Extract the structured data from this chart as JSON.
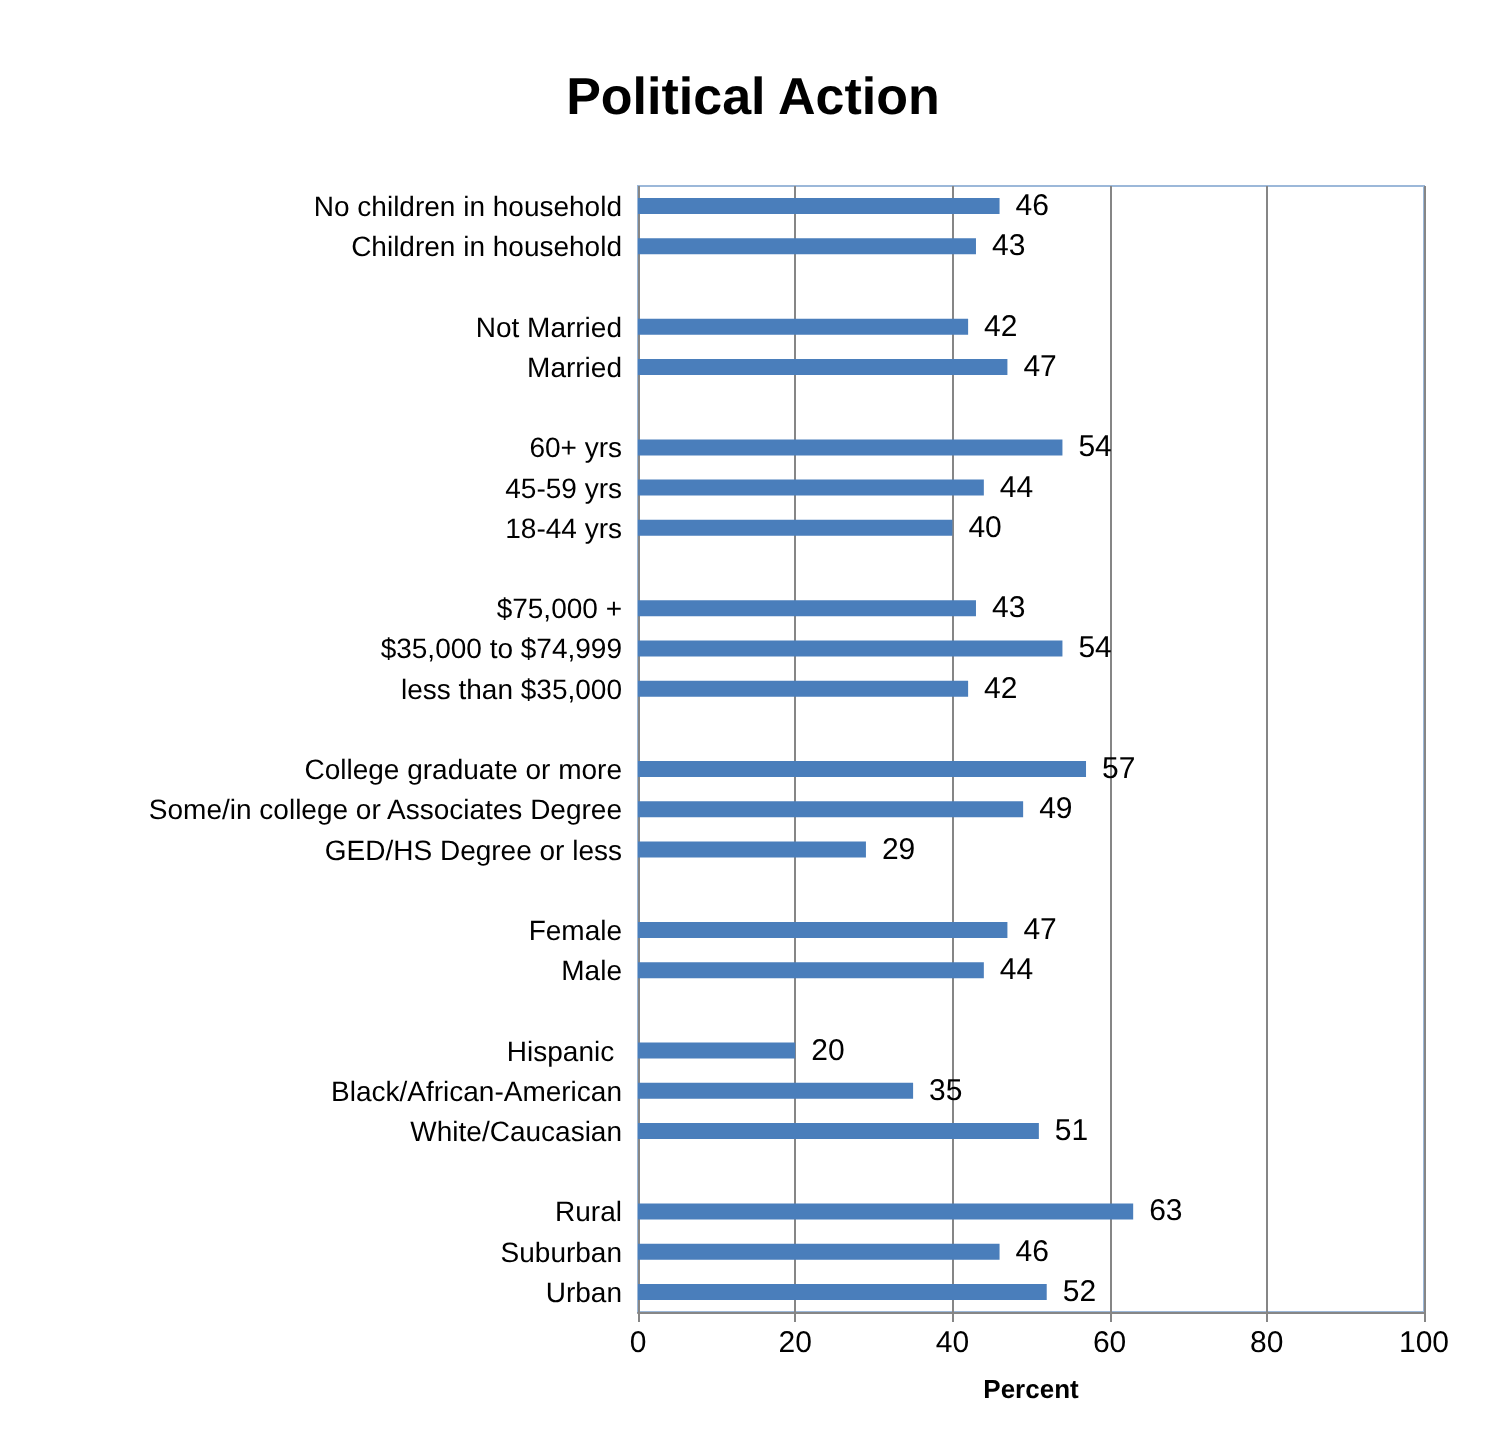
{
  "chart_data": {
    "type": "bar",
    "orientation": "horizontal",
    "title": "Political Action",
    "xlabel": "Percent",
    "categories": [
      "No children in household",
      "Children in household",
      null,
      "Not Married",
      "Married",
      null,
      "60+ yrs",
      "45-59 yrs",
      "18-44 yrs",
      null,
      "$75,000 +",
      "$35,000 to $74,999",
      "less than $35,000",
      null,
      "College graduate or more",
      "Some/in college or Associates Degree",
      "GED/HS Degree or less",
      null,
      "Female",
      "Male",
      null,
      "Hispanic ",
      "Black/African-American",
      "White/Caucasian",
      null,
      "Rural",
      "Suburban",
      "Urban"
    ],
    "values": [
      46,
      43,
      null,
      42,
      47,
      null,
      54,
      44,
      40,
      null,
      43,
      54,
      42,
      null,
      57,
      49,
      29,
      null,
      47,
      44,
      null,
      20,
      35,
      51,
      null,
      63,
      46,
      52
    ],
    "color": "#4a7ebb",
    "xlim": [
      0,
      100
    ],
    "xticks": [
      0,
      20,
      40,
      60,
      80,
      100
    ],
    "grid": "x",
    "data_labels": true
  }
}
